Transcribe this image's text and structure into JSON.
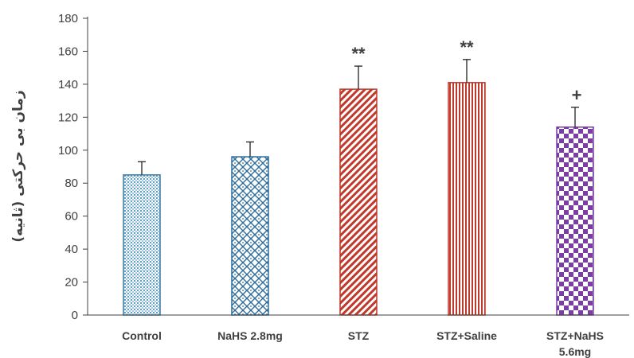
{
  "chart_data": {
    "type": "bar",
    "title": "",
    "xlabel": "",
    "ylabel": "زمان بی حرکتی (ثانیه)",
    "ylim": [
      0,
      180
    ],
    "yticks": [
      0,
      20,
      40,
      60,
      80,
      100,
      120,
      140,
      160,
      180
    ],
    "grid": false,
    "categories": [
      {
        "line1": "Control",
        "line2": ""
      },
      {
        "line1": "NaHS 2.8mg",
        "line2": ""
      },
      {
        "line1": "STZ",
        "line2": ""
      },
      {
        "line1": "STZ+Saline",
        "line2": ""
      },
      {
        "line1": "STZ+NaHS",
        "line2": "5.6mg"
      }
    ],
    "values": [
      85,
      96,
      137,
      141,
      114
    ],
    "errors": [
      8,
      9,
      14,
      14,
      12
    ],
    "annotations": [
      "",
      "",
      "**",
      "**",
      "+"
    ],
    "colors": [
      "#3a7ca5",
      "#2b6b9a",
      "#c0392b",
      "#c0392b",
      "#7b3fa3"
    ],
    "patterns": [
      "dots",
      "diamond",
      "diagonal",
      "vertical",
      "checker"
    ]
  }
}
